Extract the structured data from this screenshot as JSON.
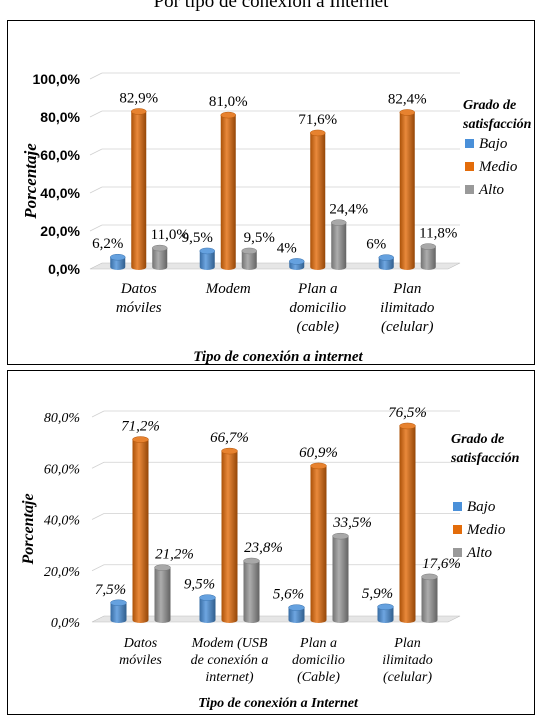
{
  "page_title": "Por tipo de conexión a Internet",
  "chart_data": [
    {
      "type": "bar",
      "title": "",
      "xlabel": "Tipo de conexión a internet",
      "ylabel": "Porcentaje",
      "ylim": [
        0,
        100
      ],
      "yticks": [
        "0,0%",
        "20,0%",
        "40,0%",
        "60,0%",
        "80,0%",
        "100,0%"
      ],
      "categories": [
        [
          "Datos",
          "móviles"
        ],
        [
          "Modem"
        ],
        [
          "Plan a",
          "domicilio",
          "(cable)"
        ],
        [
          "Plan",
          "ilimitado",
          "(celular)"
        ]
      ],
      "legend_title": [
        "Grado de",
        "satisfacción"
      ],
      "legend_position": "right",
      "grid": true,
      "series": [
        {
          "name": "Bajo",
          "color": "#4a90d9",
          "values": [
            6.2,
            9.5,
            4.0,
            6.0
          ],
          "labels": [
            "6,2%",
            "9,5%",
            "4%",
            "6%"
          ]
        },
        {
          "name": "Medio",
          "color": "#e36c0a",
          "values": [
            82.9,
            81.0,
            71.6,
            82.4
          ],
          "labels": [
            "82,9%",
            "81,0%",
            "71,6%",
            "82,4%"
          ]
        },
        {
          "name": "Alto",
          "color": "#999999",
          "values": [
            11.0,
            9.5,
            24.4,
            11.8
          ],
          "labels": [
            "11,0%",
            "9,5%",
            "24,4%",
            "11,8%"
          ]
        }
      ]
    },
    {
      "type": "bar",
      "title": "",
      "xlabel": "Tipo de conexión a Internet",
      "ylabel": "Porcentaje",
      "ylim": [
        0,
        80
      ],
      "yticks": [
        "0,0%",
        "20,0%",
        "40,0%",
        "60,0%",
        "80,0%"
      ],
      "categories": [
        [
          "Datos",
          "móviles"
        ],
        [
          "Modem (USB",
          "de conexión a",
          "internet)"
        ],
        [
          "Plan a",
          "domicilio",
          "(Cable)"
        ],
        [
          "Plan",
          "ilimitado",
          "(celular)"
        ]
      ],
      "legend_title": [
        "Grado de",
        "satisfacción"
      ],
      "legend_position": "right",
      "grid": true,
      "series": [
        {
          "name": "Bajo",
          "color": "#4a90d9",
          "values": [
            7.5,
            9.5,
            5.6,
            5.9
          ],
          "labels": [
            "7,5%",
            "9,5%",
            "5,6%",
            "5,9%"
          ]
        },
        {
          "name": "Medio",
          "color": "#e36c0a",
          "values": [
            71.2,
            66.7,
            60.9,
            76.5
          ],
          "labels": [
            "71,2%",
            "66,7%",
            "60,9%",
            "76,5%"
          ]
        },
        {
          "name": "Alto",
          "color": "#999999",
          "values": [
            21.2,
            23.8,
            33.5,
            17.6
          ],
          "labels": [
            "21,2%",
            "23,8%",
            "33,5%",
            "17,6%"
          ]
        }
      ]
    }
  ]
}
